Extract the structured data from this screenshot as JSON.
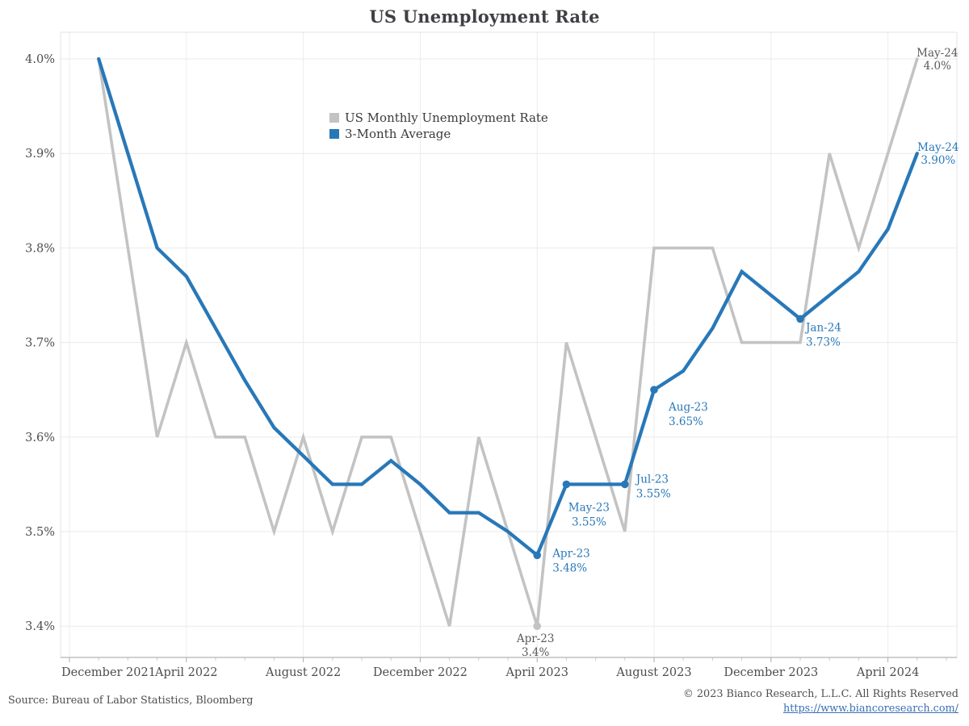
{
  "title": "US Unemployment Rate",
  "legend": {
    "items": [
      {
        "label": "US Monthly Unemployment Rate",
        "color": "#c3c3c3"
      },
      {
        "label": "3-Month Average",
        "color": "#2878b8"
      }
    ]
  },
  "footer": {
    "source": "Source: Bureau of Labor Statistics, Bloomberg",
    "copyright": "© 2023 Bianco Research, L.L.C. All Rights Reserved",
    "link": "https://www.biancoresearch.com/"
  },
  "chart_data": {
    "type": "line",
    "title": "US Unemployment Rate",
    "xlabel": "",
    "ylabel": "",
    "ylim": [
      3.35,
      4.05
    ],
    "grid": true,
    "legend_position": "inside-top-left",
    "months": [
      "Dec-2021",
      "Jan-2022",
      "Feb-2022",
      "Mar-2022",
      "Apr-2022",
      "May-2022",
      "Jun-2022",
      "Jul-2022",
      "Aug-2022",
      "Sep-2022",
      "Oct-2022",
      "Nov-2022",
      "Dec-2022",
      "Jan-2023",
      "Feb-2023",
      "Mar-2023",
      "Apr-2023",
      "May-2023",
      "Jun-2023",
      "Jul-2023",
      "Aug-2023",
      "Sep-2023",
      "Oct-2023",
      "Nov-2023",
      "Dec-2023",
      "Jan-2024",
      "Feb-2024",
      "Mar-2024",
      "Apr-2024",
      "May-2024"
    ],
    "x_tick_labels": [
      {
        "i": 0,
        "label": "December 2021"
      },
      {
        "i": 4,
        "label": "April 2022"
      },
      {
        "i": 8,
        "label": "August 2022"
      },
      {
        "i": 12,
        "label": "December 2022"
      },
      {
        "i": 16,
        "label": "April 2023"
      },
      {
        "i": 20,
        "label": "August 2023"
      },
      {
        "i": 24,
        "label": "December 2023"
      },
      {
        "i": 28,
        "label": "April 2024"
      }
    ],
    "yticks": [
      {
        "v": 4.0,
        "label": "4.0%"
      },
      {
        "v": 3.9,
        "label": "3.9%"
      },
      {
        "v": 3.8,
        "label": "3.8%"
      },
      {
        "v": 3.7,
        "label": "3.7%"
      },
      {
        "v": 3.6,
        "label": "3.6%"
      },
      {
        "v": 3.5,
        "label": "3.5%"
      },
      {
        "v": 3.4,
        "label": "3.4%"
      }
    ],
    "series": [
      {
        "name": "US Monthly Unemployment Rate",
        "color": "#c3c3c3",
        "width": 3.6,
        "values": [
          null,
          4.0,
          3.8,
          3.6,
          3.7,
          3.6,
          3.6,
          3.5,
          3.6,
          3.5,
          3.6,
          3.6,
          3.5,
          3.4,
          3.6,
          3.5,
          3.4,
          3.7,
          3.6,
          3.5,
          3.8,
          3.8,
          3.8,
          3.7,
          3.7,
          3.7,
          3.9,
          3.8,
          3.9,
          4.0
        ]
      },
      {
        "name": "3-Month Average",
        "color": "#2878b8",
        "width": 4.3,
        "values": [
          null,
          4.0,
          3.9,
          3.8,
          3.77,
          3.715,
          3.66,
          3.61,
          3.58,
          3.55,
          3.55,
          3.575,
          3.55,
          3.52,
          3.52,
          3.5,
          3.475,
          3.55,
          3.55,
          3.55,
          3.65,
          3.67,
          3.715,
          3.775,
          3.75,
          3.725,
          3.75,
          3.775,
          3.82,
          3.9
        ]
      }
    ],
    "annotations": [
      {
        "series": 0,
        "i": 29,
        "v": 4.0,
        "lines": [
          "May-24",
          "4.0%"
        ],
        "anchor": "middle",
        "dx": 25,
        "dy": [
          -3,
          13
        ],
        "marker": false
      },
      {
        "series": 1,
        "i": 29,
        "v": 3.9,
        "lines": [
          "May-24",
          "3.90%"
        ],
        "anchor": "middle",
        "dx": 26,
        "dy": [
          -3,
          13
        ],
        "marker": false
      },
      {
        "series": 1,
        "i": 25,
        "v": 3.725,
        "lines": [
          "Jan-24",
          "3.73%"
        ],
        "anchor": "start",
        "dx": 7,
        "dy": [
          15,
          33
        ],
        "marker": true
      },
      {
        "series": 1,
        "i": 20,
        "v": 3.65,
        "lines": [
          "Aug-23",
          "3.65%"
        ],
        "anchor": "start",
        "dx": 18,
        "dy": [
          26,
          44
        ],
        "marker": true
      },
      {
        "series": 1,
        "i": 19,
        "v": 3.55,
        "lines": [
          "Jul-23",
          "3.55%"
        ],
        "anchor": "start",
        "dx": 14,
        "dy": [
          -2,
          16
        ],
        "marker": true
      },
      {
        "series": 1,
        "i": 17,
        "v": 3.55,
        "lines": [
          "May-23",
          "3.55%"
        ],
        "anchor": "middle",
        "dx": 28,
        "dy": [
          33,
          51
        ],
        "marker": true
      },
      {
        "series": 1,
        "i": 16,
        "v": 3.475,
        "lines": [
          "Apr-23",
          "3.48%"
        ],
        "anchor": "start",
        "dx": 19,
        "dy": [
          2,
          20
        ],
        "marker": true
      },
      {
        "series": 0,
        "i": 16,
        "v": 3.4,
        "lines": [
          "Apr-23",
          "3.4%"
        ],
        "anchor": "middle",
        "dx": -2,
        "dy": [
          20,
          37
        ],
        "marker": true
      }
    ]
  }
}
